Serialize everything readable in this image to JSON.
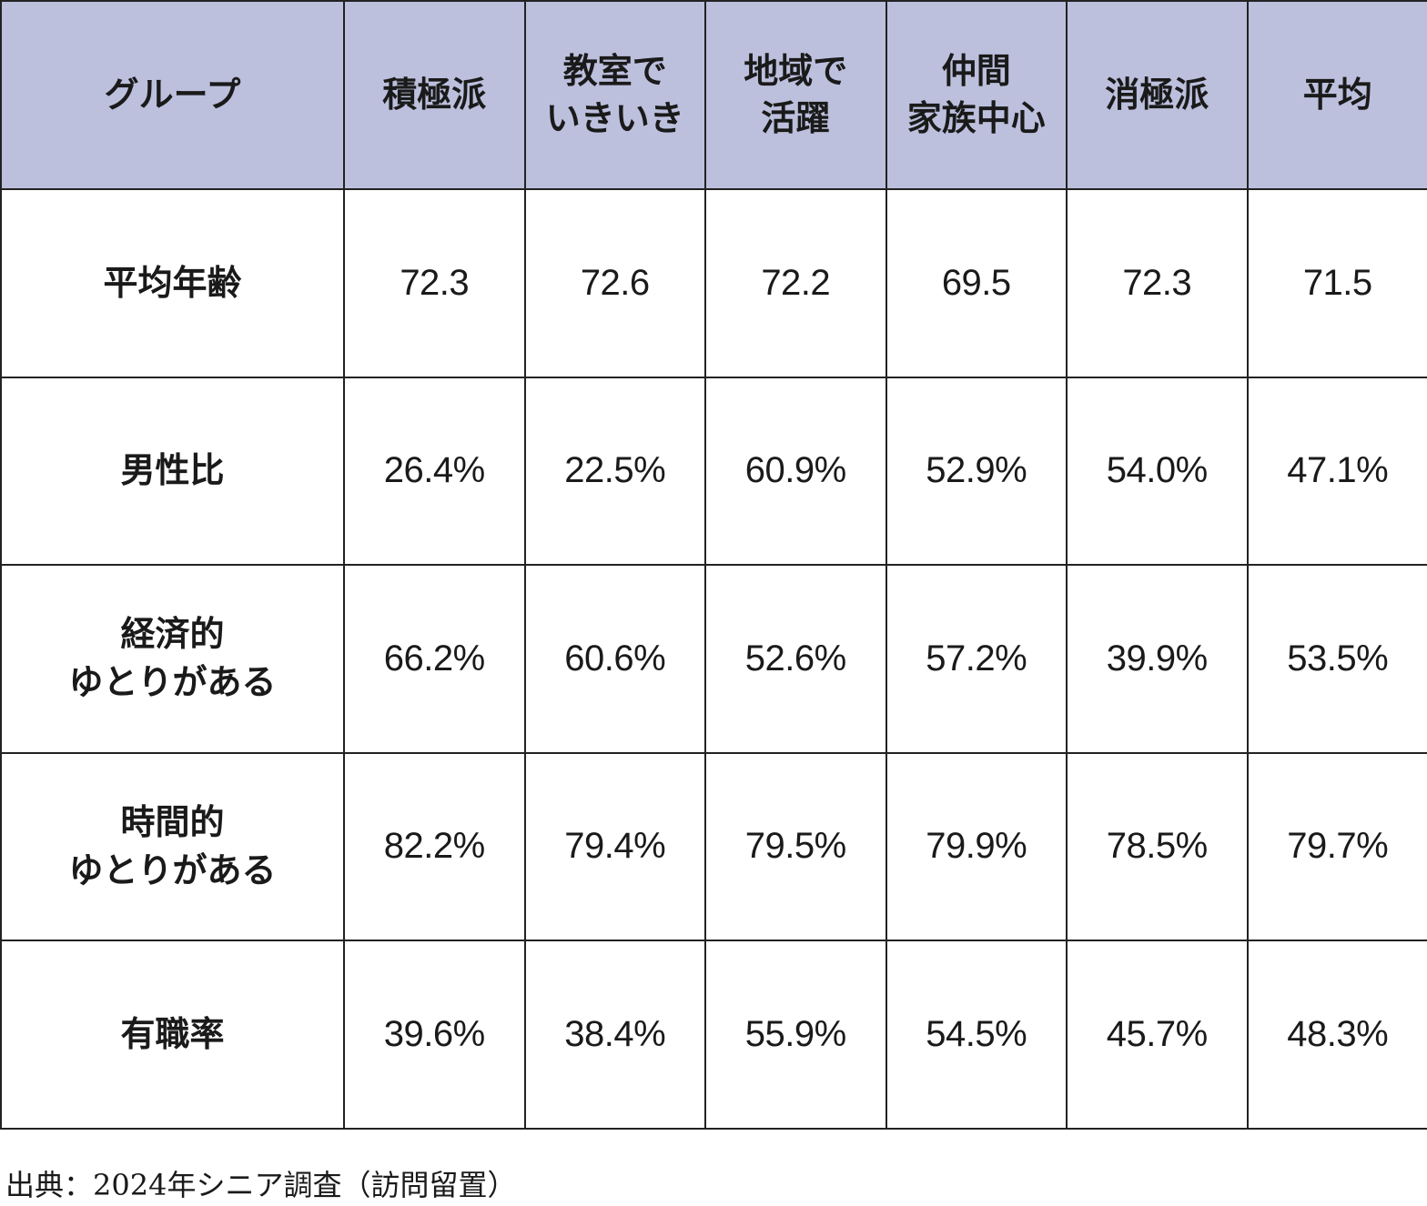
{
  "chart_data": {
    "type": "table",
    "columns": [
      "グループ",
      "積極派",
      "教室で\nいきいき",
      "地域で\n活躍",
      "仲間\n家族中心",
      "消極派",
      "平均"
    ],
    "rows": [
      {
        "label": "平均年齢",
        "values": [
          "72.3",
          "72.6",
          "72.2",
          "69.5",
          "72.3",
          "71.5"
        ]
      },
      {
        "label": "男性比",
        "values": [
          "26.4%",
          "22.5%",
          "60.9%",
          "52.9%",
          "54.0%",
          "47.1%"
        ]
      },
      {
        "label": "経済的\nゆとりがある",
        "values": [
          "66.2%",
          "60.6%",
          "52.6%",
          "57.2%",
          "39.9%",
          "53.5%"
        ]
      },
      {
        "label": "時間的\nゆとりがある",
        "values": [
          "82.2%",
          "79.4%",
          "79.5%",
          "79.9%",
          "78.5%",
          "79.7%"
        ]
      },
      {
        "label": "有職率",
        "values": [
          "39.6%",
          "38.4%",
          "55.9%",
          "54.5%",
          "45.7%",
          "48.3%"
        ]
      }
    ]
  },
  "source": "出典：2024年シニア調査（訪問留置）",
  "colors": {
    "header_bg": "#bcc0dd",
    "border": "#222222",
    "text": "#1a1a1a"
  }
}
